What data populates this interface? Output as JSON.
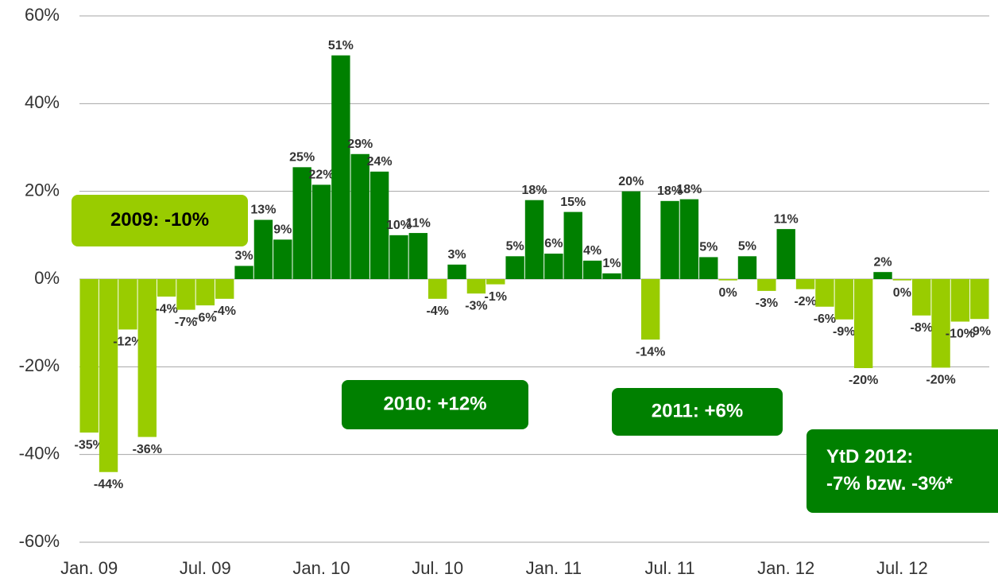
{
  "chart_data": {
    "type": "bar",
    "categories": [
      "Jan. 09",
      null,
      null,
      null,
      null,
      null,
      "Jul. 09",
      null,
      null,
      null,
      null,
      null,
      "Jan. 10",
      null,
      null,
      null,
      null,
      null,
      "Jul. 10",
      null,
      null,
      null,
      null,
      null,
      "Jan. 11",
      null,
      null,
      null,
      null,
      null,
      "Jul. 11",
      null,
      null,
      null,
      null,
      null,
      "Jan. 12",
      null,
      null,
      null,
      null,
      null,
      "Jul. 12",
      null,
      null,
      null,
      null
    ],
    "values": [
      -35,
      -44,
      -11.5,
      -36,
      -4,
      -7,
      -6,
      -4.5,
      3,
      13.5,
      9,
      25.5,
      21.5,
      51,
      28.5,
      24.5,
      10,
      10.5,
      -4.5,
      3.3,
      -3.3,
      -1.2,
      5.2,
      18,
      5.8,
      15.3,
      4.2,
      1.3,
      20,
      -13.8,
      17.8,
      18.2,
      5,
      -0.3,
      5.2,
      -2.7,
      11.4,
      -2.3,
      -6.3,
      -9.2,
      -20.3,
      1.6,
      -0.3,
      -8.3,
      -20.2,
      -9.7,
      -9.1
    ],
    "value_labels": [
      "-35%",
      "-44%",
      "-12%",
      "-36%",
      "-4%",
      "-7%",
      "-6%",
      "-4%",
      "3%",
      "13%",
      "9%",
      "25%",
      "22%",
      "51%",
      "29%",
      "24%",
      "10%",
      "11%",
      "-4%",
      "3%",
      "-3%",
      "-1%",
      "5%",
      "18%",
      "6%",
      "15%",
      "4%",
      "1%",
      "20%",
      "-14%",
      "18%",
      "18%",
      "5%",
      "0%",
      "5%",
      "-3%",
      "11%",
      "-2%",
      "-6%",
      "-9%",
      "-20%",
      "2%",
      "0%",
      "-8%",
      "-20%",
      "-10%",
      "-9%"
    ],
    "color_positive": "#008000",
    "color_negative": "#99cc00",
    "ylim": [
      -60,
      60
    ],
    "yticks": [
      {
        "value": -60,
        "label": "-60%"
      },
      {
        "value": -40,
        "label": "-40%"
      },
      {
        "value": -20,
        "label": "-20%"
      },
      {
        "value": 0,
        "label": "0%"
      },
      {
        "value": 20,
        "label": "20%"
      },
      {
        "value": 40,
        "label": "40%"
      },
      {
        "value": 60,
        "label": "60%"
      }
    ],
    "grid": true,
    "annotations": [
      {
        "lines": [
          "2009:  -10%"
        ],
        "color": "#99cc00",
        "text_color": "#000000"
      },
      {
        "lines": [
          "2010:  +12%"
        ],
        "color": "#008000",
        "text_color": "#ffffff"
      },
      {
        "lines": [
          "2011:  +6%"
        ],
        "color": "#008000",
        "text_color": "#ffffff"
      },
      {
        "lines": [
          "YtD 2012:",
          "-7% bzw. -3%*"
        ],
        "color": "#008000",
        "text_color": "#ffffff"
      }
    ]
  }
}
